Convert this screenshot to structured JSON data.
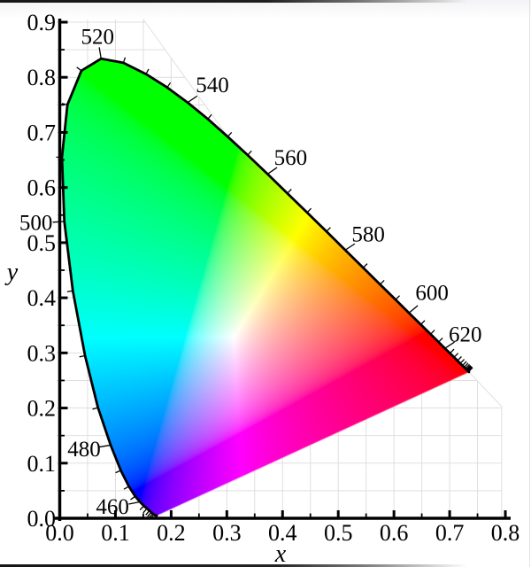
{
  "page": {
    "background_color": "#ffffff"
  },
  "axes": {
    "x": {
      "title": "x",
      "min": 0,
      "max": 0.8,
      "major_step": 0.1,
      "minor_step": 0.05,
      "tick_labels": [
        "0.0",
        "0.1",
        "0.2",
        "0.3",
        "0.4",
        "0.5",
        "0.6",
        "0.7",
        "0.8"
      ]
    },
    "y": {
      "title": "y",
      "min": 0,
      "max": 0.9,
      "major_step": 0.1,
      "minor_step": 0.05,
      "tick_labels": [
        "0.0",
        "0.1",
        "0.2",
        "0.3",
        "0.4",
        "0.5",
        "0.6",
        "0.7",
        "0.8",
        "0.9"
      ]
    }
  },
  "grid": {
    "step": 0.05,
    "color": "#dfdfdf"
  },
  "wavelength_label_color": "#2a2ad0",
  "chart_data": {
    "type": "heatmap",
    "subtype": "cie-1931-xy-chromaticity-diagram",
    "xlabel": "x",
    "ylabel": "y",
    "xlim": [
      0,
      0.8
    ],
    "ylim": [
      0,
      0.9
    ],
    "grid": "on",
    "wavelength_labels_nm": [
      "460",
      "480",
      "500",
      "520",
      "540",
      "560",
      "580",
      "600",
      "620"
    ],
    "locus_tick_step_nm": 5,
    "locus_tick_range_nm": [
      430,
      685
    ],
    "spectral_locus": [
      [
        380,
        0.1741,
        0.005
      ],
      [
        390,
        0.1738,
        0.0049
      ],
      [
        400,
        0.1733,
        0.0048
      ],
      [
        410,
        0.1726,
        0.0048
      ],
      [
        420,
        0.1714,
        0.0051
      ],
      [
        430,
        0.1689,
        0.0069
      ],
      [
        435,
        0.1669,
        0.0086
      ],
      [
        440,
        0.1644,
        0.0109
      ],
      [
        445,
        0.1611,
        0.0138
      ],
      [
        450,
        0.1566,
        0.0177
      ],
      [
        455,
        0.151,
        0.0227
      ],
      [
        460,
        0.144,
        0.0297
      ],
      [
        465,
        0.1355,
        0.0399
      ],
      [
        470,
        0.1241,
        0.0578
      ],
      [
        475,
        0.1096,
        0.0868
      ],
      [
        480,
        0.0913,
        0.1327
      ],
      [
        485,
        0.0687,
        0.2007
      ],
      [
        490,
        0.0454,
        0.295
      ],
      [
        495,
        0.0235,
        0.4127
      ],
      [
        500,
        0.0082,
        0.5384
      ],
      [
        505,
        0.0039,
        0.6548
      ],
      [
        510,
        0.0139,
        0.7502
      ],
      [
        515,
        0.0389,
        0.812
      ],
      [
        520,
        0.0743,
        0.8338
      ],
      [
        525,
        0.1142,
        0.8262
      ],
      [
        530,
        0.1547,
        0.8059
      ],
      [
        535,
        0.1929,
        0.7816
      ],
      [
        540,
        0.2296,
        0.7543
      ],
      [
        545,
        0.2658,
        0.7243
      ],
      [
        550,
        0.3016,
        0.6923
      ],
      [
        555,
        0.3373,
        0.6589
      ],
      [
        560,
        0.3731,
        0.6245
      ],
      [
        565,
        0.4087,
        0.5896
      ],
      [
        570,
        0.4441,
        0.5547
      ],
      [
        575,
        0.4788,
        0.5202
      ],
      [
        580,
        0.5125,
        0.4866
      ],
      [
        585,
        0.5448,
        0.4544
      ],
      [
        590,
        0.5752,
        0.4242
      ],
      [
        595,
        0.6029,
        0.3965
      ],
      [
        600,
        0.627,
        0.3725
      ],
      [
        605,
        0.6482,
        0.3514
      ],
      [
        610,
        0.6658,
        0.334
      ],
      [
        615,
        0.6801,
        0.3197
      ],
      [
        620,
        0.6915,
        0.3083
      ],
      [
        625,
        0.7006,
        0.2993
      ],
      [
        630,
        0.7079,
        0.292
      ],
      [
        635,
        0.714,
        0.2859
      ],
      [
        640,
        0.719,
        0.2809
      ],
      [
        645,
        0.723,
        0.277
      ],
      [
        650,
        0.726,
        0.274
      ],
      [
        655,
        0.7283,
        0.2717
      ],
      [
        660,
        0.73,
        0.27
      ],
      [
        665,
        0.7311,
        0.2689
      ],
      [
        670,
        0.732,
        0.268
      ],
      [
        675,
        0.7327,
        0.2673
      ],
      [
        680,
        0.7334,
        0.2666
      ],
      [
        685,
        0.734,
        0.266
      ],
      [
        690,
        0.7344,
        0.2656
      ],
      [
        700,
        0.7347,
        0.2653
      ]
    ]
  }
}
